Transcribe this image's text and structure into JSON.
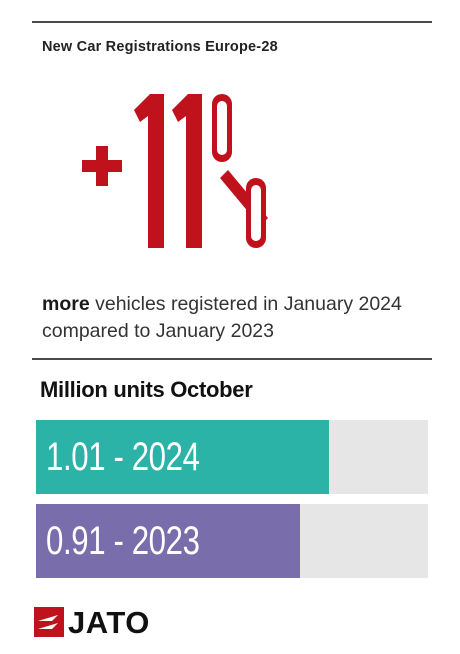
{
  "header": {
    "title": "New Car Registrations Europe-28"
  },
  "highlight": {
    "sign": "+",
    "number": "11",
    "percent": "%"
  },
  "caption": {
    "lead": "more",
    "rest": " vehicles registered in January 2024 compared to January 2023"
  },
  "section": {
    "title": "Million units October"
  },
  "colors": {
    "accent": "#c0121c",
    "teal": "#2bb3a8",
    "purple": "#7a6dac",
    "track": "#e7e6e7"
  },
  "chart_data": {
    "type": "bar",
    "orientation": "horizontal",
    "title": "Million units October",
    "categories": [
      "2024",
      "2023"
    ],
    "values": [
      1.01,
      0.91
    ],
    "labels": [
      "1.01 - 2024",
      "0.91 - 2023"
    ],
    "xlim": [
      0,
      1.35
    ]
  },
  "logo": {
    "text": "JATO",
    "icon": "jato-logo-icon"
  }
}
